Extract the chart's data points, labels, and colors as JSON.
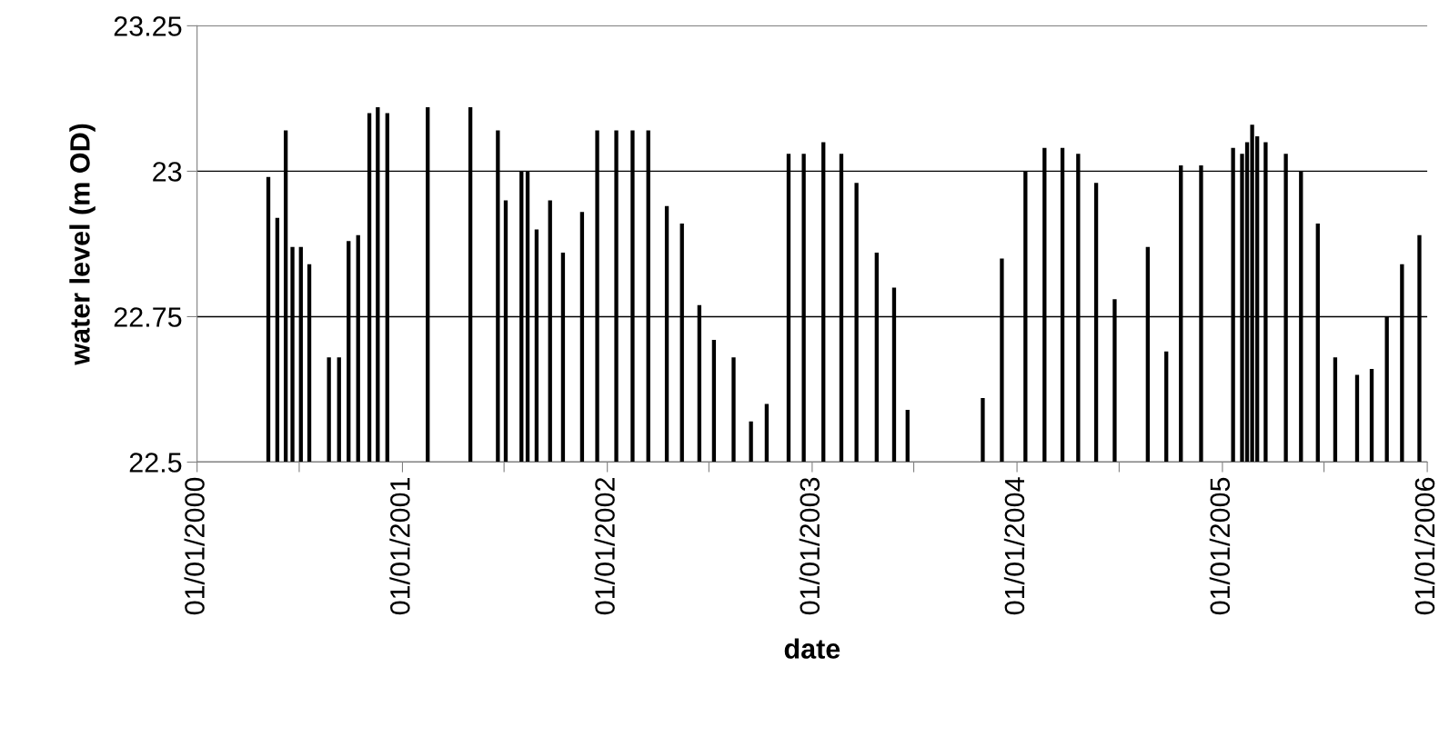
{
  "chart_data": {
    "type": "bar",
    "xlabel": "date",
    "ylabel": "water level (m OD)",
    "x": [
      "2000-05-07",
      "2000-05-23",
      "2000-06-07",
      "2000-06-19",
      "2000-07-04",
      "2000-07-19",
      "2000-08-23",
      "2000-09-10",
      "2000-09-27",
      "2000-10-14",
      "2000-11-03",
      "2000-11-18",
      "2000-12-05",
      "2001-02-15",
      "2001-05-02",
      "2001-06-20",
      "2001-07-04",
      "2001-08-01",
      "2001-08-12",
      "2001-08-28",
      "2001-09-21",
      "2001-10-14",
      "2001-11-17",
      "2001-12-14",
      "2002-01-17",
      "2002-02-15",
      "2002-03-15",
      "2002-04-17",
      "2002-05-14",
      "2002-06-14",
      "2002-07-10",
      "2002-08-14",
      "2002-09-14",
      "2002-10-12",
      "2002-11-20",
      "2002-12-17",
      "2003-01-21",
      "2003-02-22",
      "2003-03-21",
      "2003-04-26",
      "2003-05-27",
      "2003-06-20",
      "2003-11-01",
      "2003-12-05",
      "2004-01-16",
      "2004-02-19",
      "2004-03-22",
      "2004-04-19",
      "2004-05-21",
      "2004-06-23",
      "2004-08-21",
      "2004-09-23",
      "2004-10-19",
      "2004-11-24",
      "2005-01-20",
      "2005-02-05",
      "2005-02-14",
      "2005-02-23",
      "2005-03-04",
      "2005-03-19",
      "2005-04-24",
      "2005-05-21",
      "2005-06-20",
      "2005-07-21",
      "2005-08-29",
      "2005-09-24",
      "2005-10-21",
      "2005-11-17",
      "2005-12-18"
    ],
    "values": [
      22.99,
      22.92,
      23.07,
      22.87,
      22.87,
      22.84,
      22.68,
      22.68,
      22.88,
      22.89,
      23.1,
      23.11,
      23.1,
      23.11,
      23.11,
      23.07,
      22.95,
      23.0,
      23.0,
      22.9,
      22.95,
      22.86,
      22.93,
      23.07,
      23.07,
      23.07,
      23.07,
      22.94,
      22.91,
      22.77,
      22.71,
      22.68,
      22.57,
      22.6,
      23.03,
      23.03,
      23.05,
      23.03,
      22.98,
      22.86,
      22.8,
      22.59,
      22.61,
      22.85,
      23.0,
      23.04,
      23.04,
      23.03,
      22.98,
      22.78,
      22.87,
      22.69,
      23.01,
      23.01,
      23.04,
      23.03,
      23.05,
      23.08,
      23.06,
      23.05,
      23.03,
      23.0,
      22.91,
      22.68,
      22.65,
      22.66,
      22.75,
      22.84,
      22.89
    ],
    "color": "#000000",
    "xlim": [
      "2000-01-01",
      "2006-01-01"
    ],
    "xticks": [
      {
        "value": "2000-01-01",
        "label": "01/01/2000"
      },
      {
        "value": "2000-07-01",
        "label": null
      },
      {
        "value": "2001-01-01",
        "label": "01/01/2001"
      },
      {
        "value": "2001-07-01",
        "label": null
      },
      {
        "value": "2002-01-01",
        "label": "01/01/2002"
      },
      {
        "value": "2002-07-01",
        "label": null
      },
      {
        "value": "2003-01-01",
        "label": "01/01/2003"
      },
      {
        "value": "2003-07-01",
        "label": null
      },
      {
        "value": "2004-01-01",
        "label": "01/01/2004"
      },
      {
        "value": "2004-07-01",
        "label": null
      },
      {
        "value": "2005-01-01",
        "label": "01/01/2005"
      },
      {
        "value": "2005-07-01",
        "label": null
      },
      {
        "value": "2006-01-01",
        "label": "01/01/2006"
      }
    ],
    "ylim": [
      22.5,
      23.25
    ],
    "yticks": [
      22.5,
      22.75,
      23,
      23.25
    ],
    "grid": "y"
  }
}
